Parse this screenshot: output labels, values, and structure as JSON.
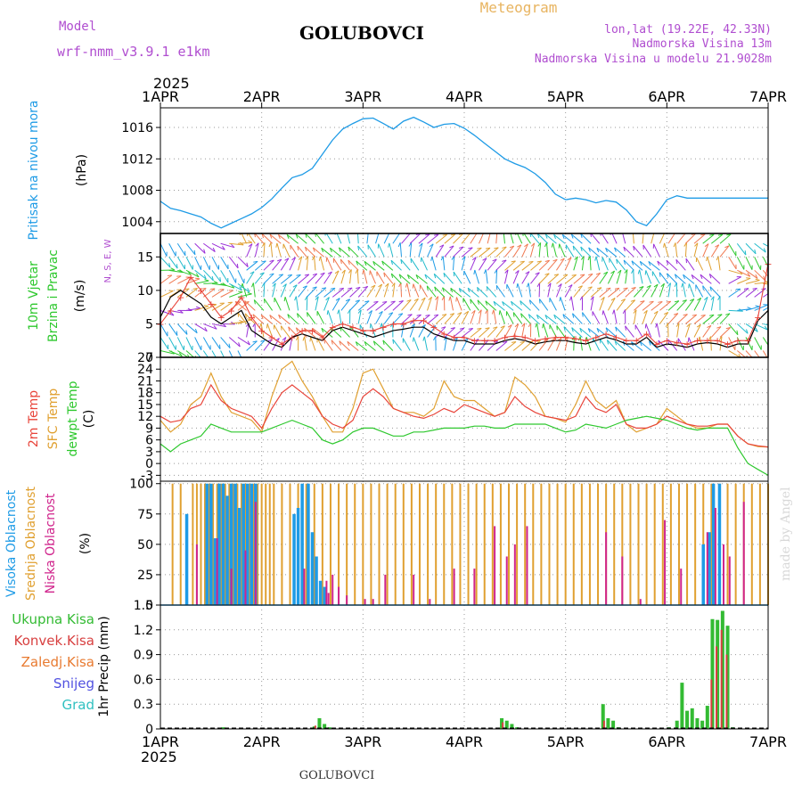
{
  "header": {
    "model_label": "Model",
    "model_name": "wrf-nmm_v3.9.1 e1km",
    "station": "GOLUBOVCI",
    "chart_kind": "Meteogram",
    "lonlat": "lon,lat (19.22E, 42.33N)",
    "altitude": "Nadmorska Visina 13m",
    "model_altitude": "Nadmorska Visina u modelu 21.9028m",
    "year": "2025",
    "footer_station": "GOLUBOVCI",
    "credit": "made by Angel"
  },
  "colors": {
    "pressure": "#1e9be6",
    "temp2m": "#e8443a",
    "sfc": "#e0a030",
    "dewpt": "#2ec82e",
    "high": "#1e9be6",
    "mid": "#e0a030",
    "low": "#d0248c",
    "precip": "#33bb33",
    "conv": "#d84040",
    "frz": "#e87a30",
    "snow": "#5050e0",
    "grad": "#30c0c0",
    "model": "#b04ed0",
    "header_orange": "#e8b460"
  },
  "chart_data": [
    {
      "type": "line",
      "id": "pressure",
      "ylabel_lines": [
        "Pritisak na nivou mora"
      ],
      "unit": "(hPa)",
      "x_ticks": [
        "1APR",
        "2APR",
        "3APR",
        "4APR",
        "5APR",
        "6APR",
        "7APR"
      ],
      "ylim": [
        1002.5,
        1018.5
      ],
      "y_ticks": [
        1004,
        1008,
        1012,
        1016
      ],
      "x": [
        0,
        0.1,
        0.2,
        0.3,
        0.4,
        0.5,
        0.6,
        0.7,
        0.8,
        0.9,
        1.0,
        1.1,
        1.2,
        1.3,
        1.4,
        1.5,
        1.6,
        1.7,
        1.8,
        1.9,
        2.0,
        2.1,
        2.2,
        2.3,
        2.4,
        2.5,
        2.6,
        2.7,
        2.8,
        2.9,
        3.0,
        3.1,
        3.2,
        3.3,
        3.4,
        3.5,
        3.6,
        3.7,
        3.8,
        3.9,
        4.0,
        4.1,
        4.2,
        4.3,
        4.4,
        4.5,
        4.6,
        4.7,
        4.8,
        4.9,
        5.0,
        5.1,
        5.2,
        5.3,
        5.4,
        5.5,
        5.6,
        5.7,
        5.8,
        5.9,
        6.0
      ],
      "series": [
        {
          "key": "pressure",
          "values": [
            1006.6,
            1005.7,
            1005.4,
            1005.0,
            1004.6,
            1003.8,
            1003.2,
            1003.8,
            1004.4,
            1005.0,
            1005.8,
            1006.9,
            1008.3,
            1009.6,
            1010.0,
            1010.8,
            1012.6,
            1014.4,
            1015.8,
            1016.5,
            1017.1,
            1017.2,
            1016.5,
            1015.8,
            1016.8,
            1017.3,
            1016.7,
            1016.0,
            1016.4,
            1016.5,
            1015.9,
            1015.0,
            1014.0,
            1013.0,
            1012.0,
            1011.4,
            1010.9,
            1010.1,
            1009.0,
            1007.5,
            1006.8,
            1007.0,
            1006.8,
            1006.4,
            1006.7,
            1006.5,
            1005.5,
            1004.0,
            1003.5,
            1005.0,
            1006.8,
            1007.3,
            1007.0,
            1007.0,
            1007.0,
            1007.0,
            1007.0,
            1007.0,
            1007.0,
            1007.0,
            1007.0
          ]
        }
      ]
    },
    {
      "type": "line",
      "id": "wind",
      "ylabel_lines": [
        "10m Vjetar",
        "Brzina i Pravac"
      ],
      "unit": "(m/s)",
      "compass": "N, S, E, W",
      "ylim": [
        0,
        18.5
      ],
      "y_ticks": [
        0,
        5,
        10,
        15
      ],
      "x": [
        0,
        0.1,
        0.2,
        0.3,
        0.4,
        0.5,
        0.6,
        0.7,
        0.8,
        0.9,
        1.0,
        1.1,
        1.2,
        1.3,
        1.4,
        1.5,
        1.6,
        1.7,
        1.8,
        1.9,
        2.0,
        2.1,
        2.2,
        2.3,
        2.4,
        2.5,
        2.6,
        2.7,
        2.8,
        2.9,
        3.0,
        3.1,
        3.2,
        3.3,
        3.4,
        3.5,
        3.6,
        3.7,
        3.8,
        3.9,
        4.0,
        4.1,
        4.2,
        4.3,
        4.4,
        4.5,
        4.6,
        4.7,
        4.8,
        4.9,
        5.0,
        5.1,
        5.2,
        5.3,
        5.4,
        5.5,
        5.6,
        5.7,
        5.8,
        5.9,
        6.0
      ],
      "series": [
        {
          "key": "speed",
          "color": "#000000",
          "values": [
            6,
            9,
            10,
            9,
            8,
            6,
            5,
            6,
            7,
            4,
            3,
            2,
            1.5,
            3,
            3.5,
            3,
            2.5,
            4,
            4.5,
            4,
            3.5,
            3,
            3.5,
            4,
            4.2,
            4.5,
            4.5,
            3.5,
            3,
            2.5,
            2.5,
            2,
            2,
            2,
            2.5,
            2.8,
            2.5,
            2,
            2.3,
            2.5,
            2.5,
            2.2,
            2,
            2.5,
            3,
            2.6,
            2,
            2,
            3,
            1.5,
            2,
            1.8,
            1.5,
            2,
            2.2,
            2,
            1.5,
            2,
            2,
            5.5,
            7
          ]
        },
        {
          "key": "gust",
          "color": "#e8443a",
          "values": [
            5,
            7,
            9,
            12,
            10,
            8,
            6,
            7,
            9,
            6,
            4,
            3,
            2,
            3,
            4,
            4,
            3,
            4.5,
            5,
            4.5,
            4,
            4,
            4.5,
            5,
            5,
            5.5,
            5.5,
            4.5,
            3.5,
            3,
            3,
            2.5,
            2.5,
            2.5,
            3,
            3.2,
            3,
            2.5,
            2.8,
            3,
            3,
            2.8,
            2.5,
            3,
            3.5,
            3,
            2.5,
            2.5,
            3.5,
            2,
            2.5,
            2.2,
            2,
            2.5,
            2.5,
            2.5,
            2,
            2.5,
            2.5,
            6,
            14
          ]
        }
      ],
      "barb_rows": [
        1,
        3,
        5,
        7,
        9,
        11,
        13,
        15,
        17
      ],
      "barb_colors": [
        "#2ec82e",
        "#22bbcc",
        "#1e9be6",
        "#9b30d8",
        "#e0a030",
        "#f07850"
      ]
    },
    {
      "type": "line",
      "id": "temperature",
      "ylabel_lines": [
        "2m Temp",
        "SFC Temp",
        "dewpt Temp"
      ],
      "unit": "(C)",
      "ylim": [
        -4.5,
        27
      ],
      "y_ticks": [
        -3,
        0,
        3,
        6,
        9,
        12,
        15,
        18,
        21,
        24,
        27
      ],
      "x": [
        0,
        0.1,
        0.2,
        0.3,
        0.4,
        0.5,
        0.6,
        0.7,
        0.8,
        0.9,
        1.0,
        1.1,
        1.2,
        1.3,
        1.4,
        1.5,
        1.6,
        1.7,
        1.8,
        1.9,
        2.0,
        2.1,
        2.2,
        2.3,
        2.4,
        2.5,
        2.6,
        2.7,
        2.8,
        2.9,
        3.0,
        3.1,
        3.2,
        3.3,
        3.4,
        3.5,
        3.6,
        3.7,
        3.8,
        3.9,
        4.0,
        4.1,
        4.2,
        4.3,
        4.4,
        4.5,
        4.6,
        4.7,
        4.8,
        4.9,
        5.0,
        5.1,
        5.2,
        5.3,
        5.4,
        5.5,
        5.6,
        5.7,
        5.8,
        5.9,
        6.0
      ],
      "series": [
        {
          "key": "t2m",
          "name": "2m Temp",
          "values": [
            12,
            10.5,
            11,
            14,
            15,
            20,
            16,
            14,
            13,
            12,
            9,
            14,
            18,
            20,
            18,
            16,
            12,
            10,
            9,
            11,
            17,
            19,
            17,
            14,
            13,
            12,
            11.5,
            12.5,
            14,
            13,
            15,
            14,
            13,
            12,
            13,
            17,
            14.5,
            13,
            12,
            11.5,
            11,
            12,
            17,
            14,
            13,
            15,
            10,
            9,
            9,
            10,
            12,
            11,
            10,
            9.5,
            9.5,
            10,
            10,
            7,
            5,
            4.5,
            4.2
          ]
        },
        {
          "key": "sfc",
          "name": "SFC Temp",
          "values": [
            11,
            8,
            10,
            15,
            17,
            23,
            17,
            13,
            12,
            11,
            8,
            17,
            24,
            26,
            21,
            17,
            12,
            8,
            8,
            14,
            23,
            24,
            19,
            14,
            13,
            13,
            12,
            14,
            21,
            17,
            16,
            16,
            14,
            12,
            13,
            22,
            20,
            17,
            12,
            11.5,
            10.5,
            15,
            21,
            16,
            14,
            16,
            10,
            8,
            9,
            10,
            14,
            12,
            10,
            9,
            9,
            10,
            10,
            7,
            5,
            4.3,
            4.2
          ]
        },
        {
          "key": "dew",
          "name": "dewpt Temp",
          "values": [
            5,
            3,
            5,
            6,
            7,
            10,
            9,
            8,
            8,
            8,
            8,
            9,
            10,
            11,
            10,
            9,
            6,
            5,
            6,
            8,
            9,
            9,
            8,
            7,
            7,
            8,
            8,
            8.5,
            9,
            9,
            9,
            9.5,
            9.5,
            9,
            9,
            10,
            10,
            10,
            10,
            9,
            8,
            8.5,
            10,
            9.5,
            9,
            10,
            11,
            11.5,
            12,
            11.5,
            11,
            10,
            9,
            8.5,
            9,
            9,
            9,
            4,
            0,
            -1.5,
            -3
          ]
        }
      ]
    },
    {
      "type": "bar",
      "id": "clouds",
      "ylabel_lines": [
        "Visoka Oblacnost",
        "Srednja Oblacnost",
        "Niska Oblacnost"
      ],
      "unit": "(%)",
      "ylim": [
        0,
        102
      ],
      "y_ticks": [
        0,
        25,
        50,
        75,
        100
      ],
      "series": [
        {
          "key": "mid",
          "name": "Srednja Oblacnost",
          "x": [
            0.12,
            0.2,
            0.32,
            0.36,
            0.4,
            0.44,
            0.48,
            0.52,
            0.56,
            0.6,
            0.64,
            0.68,
            0.72,
            0.76,
            0.8,
            0.84,
            0.88,
            0.92,
            0.96,
            1.0,
            1.04,
            1.08,
            1.12,
            1.2,
            1.28,
            1.36,
            1.44,
            1.52,
            1.6,
            1.68,
            1.76,
            1.84,
            1.92,
            2.0,
            2.08,
            2.16,
            2.24,
            2.32,
            2.4,
            2.48,
            2.56,
            2.64,
            2.72,
            2.8,
            2.88,
            2.96,
            3.04,
            3.12,
            3.2,
            3.28,
            3.36,
            3.44,
            3.52,
            3.6,
            3.68,
            3.76,
            3.84,
            3.92,
            4.0,
            4.08,
            4.16,
            4.24,
            4.32,
            4.4,
            4.48,
            4.56,
            4.64,
            4.72,
            4.8,
            4.88,
            4.96,
            5.04,
            5.12,
            5.2,
            5.28,
            5.36,
            5.44,
            5.52,
            5.6,
            5.68,
            5.76,
            5.84,
            5.92,
            6.0
          ],
          "values": [
            100,
            100,
            100,
            100,
            100,
            100,
            100,
            100,
            100,
            100,
            100,
            100,
            100,
            100,
            100,
            100,
            100,
            100,
            100,
            100,
            100,
            100,
            100,
            100,
            100,
            100,
            100,
            100,
            100,
            100,
            100,
            100,
            100,
            100,
            100,
            100,
            100,
            100,
            100,
            100,
            100,
            100,
            100,
            100,
            100,
            100,
            100,
            100,
            100,
            100,
            100,
            100,
            100,
            100,
            100,
            100,
            100,
            100,
            100,
            100,
            100,
            100,
            100,
            100,
            100,
            100,
            100,
            100,
            100,
            100,
            100,
            100,
            100,
            100,
            100,
            100,
            100,
            100,
            100,
            100,
            100,
            100,
            100,
            100
          ]
        },
        {
          "key": "high",
          "name": "Visoka Oblacnost",
          "x": [
            0.26,
            0.46,
            0.5,
            0.54,
            0.58,
            0.62,
            0.66,
            0.7,
            0.74,
            0.78,
            0.82,
            0.86,
            0.9,
            0.94,
            1.32,
            1.36,
            1.4,
            1.46,
            1.5,
            1.54,
            1.58,
            1.62,
            5.36,
            5.42,
            5.46,
            5.52
          ],
          "values": [
            75,
            100,
            100,
            55,
            100,
            100,
            90,
            100,
            100,
            80,
            100,
            100,
            100,
            100,
            75,
            80,
            100,
            100,
            60,
            40,
            20,
            15,
            50,
            60,
            100,
            100
          ]
        },
        {
          "key": "low",
          "name": "Niska Oblacnost",
          "x": [
            0.36,
            0.56,
            0.7,
            0.84,
            0.94,
            1.42,
            1.64,
            1.66,
            1.7,
            1.76,
            1.84,
            2.02,
            2.1,
            2.22,
            2.5,
            2.66,
            2.9,
            3.1,
            3.3,
            3.42,
            3.5,
            3.62,
            4.4,
            4.56,
            4.74,
            4.98,
            5.14,
            5.4,
            5.48,
            5.56,
            5.62,
            5.76
          ],
          "values": [
            50,
            55,
            30,
            45,
            85,
            30,
            20,
            10,
            25,
            15,
            8,
            5,
            5,
            25,
            25,
            5,
            30,
            30,
            65,
            40,
            50,
            65,
            60,
            40,
            5,
            70,
            30,
            60,
            80,
            50,
            40,
            85
          ]
        }
      ]
    },
    {
      "type": "bar",
      "id": "precip",
      "ylabel_lines": [
        "1hr Precip (mm)"
      ],
      "legend": [
        "Ukupna Kisa",
        "Konvek.Kisa",
        "Zaledj.Kisa",
        "Snijeg",
        "Grad"
      ],
      "ylim": [
        0,
        1.5
      ],
      "y_ticks": [
        0,
        0.3,
        0.6,
        0.9,
        1.2,
        1.5
      ],
      "series": [
        {
          "key": "total",
          "name": "Ukupna Kisa",
          "x": [
            0.62,
            1.52,
            1.57,
            1.62,
            1.67,
            3.37,
            3.42,
            3.47,
            3.52,
            4.37,
            4.42,
            4.47,
            4.52,
            5.02,
            5.1,
            5.15,
            5.2,
            5.25,
            5.3,
            5.35,
            5.4,
            5.45,
            5.5,
            5.55,
            5.6,
            5.65
          ],
          "values": [
            0.02,
            0.03,
            0.13,
            0.06,
            0.02,
            0.13,
            0.1,
            0.06,
            0.02,
            0.3,
            0.13,
            0.1,
            0.02,
            0.02,
            0.1,
            0.56,
            0.22,
            0.25,
            0.13,
            0.1,
            0.28,
            1.33,
            1.32,
            1.43,
            1.25,
            0.02
          ]
        },
        {
          "key": "conv",
          "name": "Konvek.Kisa",
          "x": [
            1.53,
            3.38,
            4.38,
            5.44,
            5.49,
            5.54,
            5.59
          ],
          "values": [
            0.04,
            0.08,
            0.1,
            0.6,
            1.0,
            1.2,
            0.9
          ]
        }
      ]
    }
  ]
}
